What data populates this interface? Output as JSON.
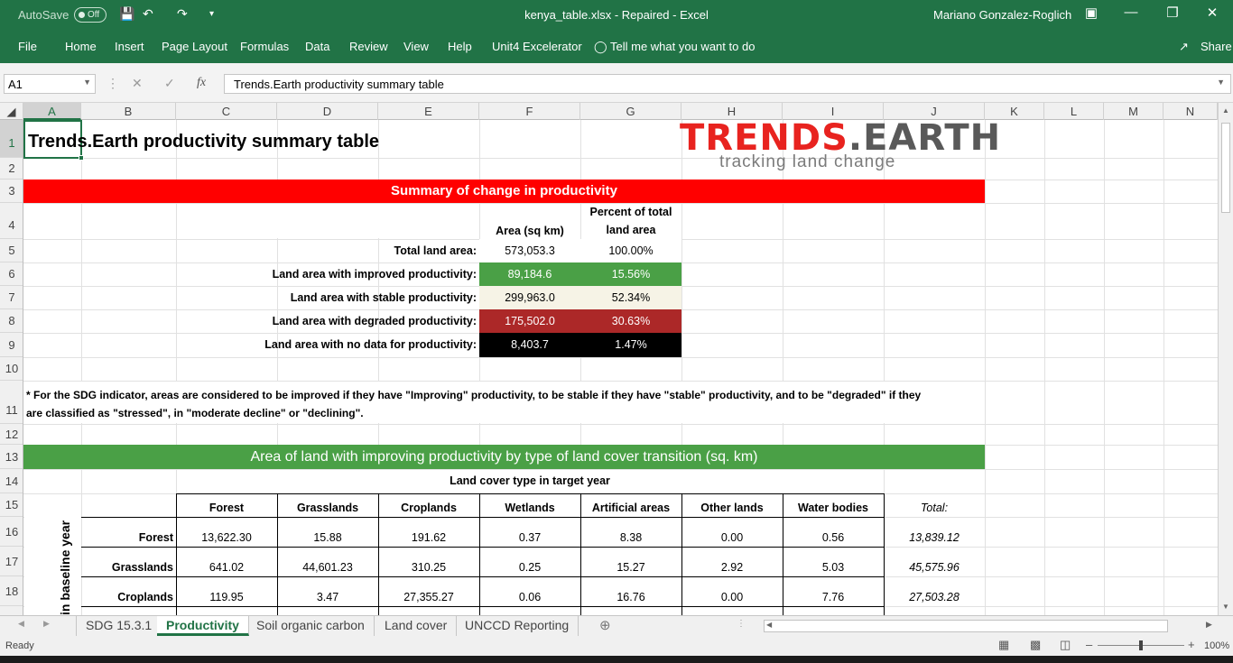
{
  "titlebar": {
    "autosave_label": "AutoSave",
    "autosave_state": "Off",
    "title": "kenya_table.xlsx  -  Repaired  -  Excel",
    "user": "Mariano Gonzalez-Roglich"
  },
  "ribbon": {
    "tabs": [
      "File",
      "Home",
      "Insert",
      "Page Layout",
      "Formulas",
      "Data",
      "Review",
      "View",
      "Help",
      "Unit4 Excelerator"
    ],
    "tell_me": "Tell me what you want to do",
    "share": "Share"
  },
  "formula_bar": {
    "name_box": "A1",
    "fx": "fx",
    "formula": "Trends.Earth productivity summary table"
  },
  "columns": [
    "A",
    "B",
    "C",
    "D",
    "E",
    "F",
    "G",
    "H",
    "I",
    "J",
    "K",
    "L",
    "M",
    "N"
  ],
  "rows": [
    "1",
    "2",
    "3",
    "4",
    "5",
    "6",
    "7",
    "8",
    "9",
    "10",
    "11",
    "12",
    "13",
    "14",
    "15",
    "16",
    "17",
    "18"
  ],
  "sheet": {
    "title": "Trends.Earth productivity summary table",
    "logo": {
      "text_main": "TRENDS",
      "text_sep": ".",
      "text_end": "EARTH",
      "tagline": "tracking land change"
    },
    "summary_header": "Summary of change in productivity",
    "area_header": "Area (sq km)",
    "percent_header_1": "Percent of total",
    "percent_header_2": "land area",
    "summary_rows": [
      {
        "label": "Total land area:",
        "area": "573,053.3",
        "percent": "100.00%",
        "color": "#ffffff",
        "text": "#000000"
      },
      {
        "label": "Land area with improved productivity:",
        "area": "89,184.6",
        "percent": "15.56%",
        "color": "#4aa046",
        "text": "#ffffff"
      },
      {
        "label": "Land area with stable productivity:",
        "area": "299,963.0",
        "percent": "52.34%",
        "color": "#f6f3e6",
        "text": "#000000"
      },
      {
        "label": "Land area with degraded productivity:",
        "area": "175,502.0",
        "percent": "30.63%",
        "color": "#ac2828",
        "text": "#ffffff"
      },
      {
        "label": "Land area with no data for productivity:",
        "area": "8,403.7",
        "percent": "1.47%",
        "color": "#000000",
        "text": "#ffffff"
      }
    ],
    "note_1": "* For the SDG indicator, areas are considered to be improved if they have \"Improving\" productivity, to be stable if they have \"stable\" productivity, and to be \"degraded\" if they",
    "note_2": "are classified as \"stressed\", in \"moderate decline\" or \"declining\".",
    "transition_header": "Area of land with improving productivity by type of land cover transition (sq. km)",
    "target_year_label": "Land cover type in target year",
    "baseline_year_label": "in baseline year",
    "matrix_columns": [
      "Forest",
      "Grasslands",
      "Croplands",
      "Wetlands",
      "Artificial areas",
      "Other lands",
      "Water bodies"
    ],
    "total_label": "Total:",
    "matrix_rows": [
      {
        "label": "Forest",
        "values": [
          "13,622.30",
          "15.88",
          "191.62",
          "0.37",
          "8.38",
          "0.00",
          "0.56"
        ],
        "total": "13,839.12"
      },
      {
        "label": "Grasslands",
        "values": [
          "641.02",
          "44,601.23",
          "310.25",
          "0.25",
          "15.27",
          "2.92",
          "5.03"
        ],
        "total": "45,575.96"
      },
      {
        "label": "Croplands",
        "values": [
          "119.95",
          "3.47",
          "27,355.27",
          "0.06",
          "16.76",
          "0.00",
          "7.76"
        ],
        "total": "27,503.28"
      }
    ],
    "colors": {
      "red_band": "#ff0000",
      "green_band": "#4aa046",
      "brand_green": "#217346"
    }
  },
  "sheet_tabs": [
    "SDG 15.3.1",
    "Productivity",
    "Soil organic carbon",
    "Land cover",
    "UNCCD Reporting"
  ],
  "active_tab": "Productivity",
  "status": {
    "ready": "Ready",
    "zoom": "100%"
  }
}
